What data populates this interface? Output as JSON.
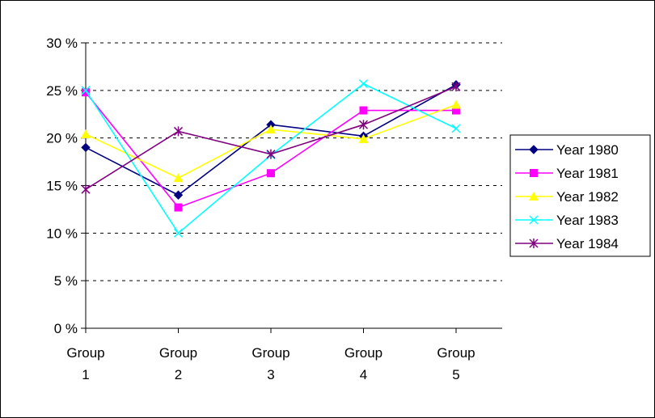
{
  "chart_data": {
    "type": "line",
    "categories": [
      [
        "Group",
        "1"
      ],
      [
        "Group",
        "2"
      ],
      [
        "Group",
        "3"
      ],
      [
        "Group",
        "4"
      ],
      [
        "Group",
        "5"
      ]
    ],
    "yticks": [
      "0 %",
      "5 %",
      "10 %",
      "15 %",
      "20 %",
      "25 %",
      "30 %"
    ],
    "ylim": [
      0,
      30
    ],
    "ytick_step": 5,
    "grid": "horizontal-dashed",
    "legend_position": "right",
    "series": [
      {
        "name": "Year 1980",
        "color": "#000080",
        "marker": "diamond",
        "values": [
          19.0,
          14.0,
          21.4,
          20.2,
          25.6
        ]
      },
      {
        "name": "Year 1981",
        "color": "#FF00FF",
        "marker": "square",
        "values": [
          24.8,
          12.7,
          16.3,
          22.9,
          22.9
        ]
      },
      {
        "name": "Year 1982",
        "color": "#FFFF00",
        "marker": "triangle",
        "values": [
          20.4,
          15.8,
          20.9,
          19.9,
          23.5
        ]
      },
      {
        "name": "Year 1983",
        "color": "#00FFFF",
        "marker": "x",
        "values": [
          25.0,
          10.0,
          18.2,
          25.7,
          21.0
        ]
      },
      {
        "name": "Year 1984",
        "color": "#800080",
        "marker": "star",
        "values": [
          14.6,
          20.7,
          18.3,
          21.4,
          25.4
        ]
      }
    ]
  }
}
